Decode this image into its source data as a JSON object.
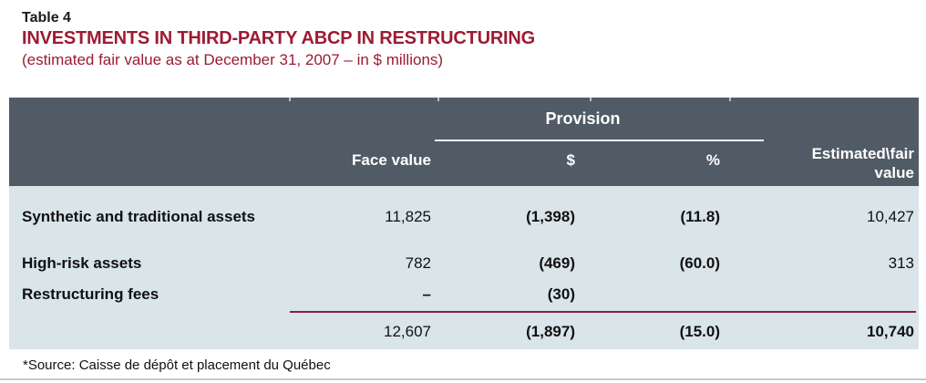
{
  "colors": {
    "accent-maroon": "#9c1b33",
    "header-bg": "#505b66",
    "body-bg": "#d9e5e8",
    "divider-maroon": "#8e1f3e",
    "page-rule": "#b6bcbf"
  },
  "header": {
    "table_label": "Table 4",
    "title": "INVESTMENTS IN THIRD-PARTY ABCP IN RESTRUCTURING",
    "subtitle": "(estimated fair value as at December 31, 2007 – in $ millions)"
  },
  "table": {
    "group_header": "Provision",
    "columns": {
      "face_value": "Face value",
      "provision_dollar": "$",
      "provision_percent": "%",
      "estimated_line1": "Estimated\\fair",
      "estimated_line2": "value"
    },
    "rows": [
      {
        "label": "Synthetic and traditional assets",
        "face_value": "11,825",
        "provision_dollar": "(1,398)",
        "provision_percent": "(11.8)",
        "estimated_fair_value": "10,427"
      },
      {
        "label": "High-risk assets",
        "face_value": "782",
        "provision_dollar": "(469)",
        "provision_percent": "(60.0)",
        "estimated_fair_value": "313"
      },
      {
        "label": "Restructuring fees",
        "face_value": "–",
        "provision_dollar": "(30)",
        "provision_percent": "",
        "estimated_fair_value": ""
      }
    ],
    "total": {
      "face_value": "12,607",
      "provision_dollar": "(1,897)",
      "provision_percent": "(15.0)",
      "estimated_fair_value": "10,740"
    }
  },
  "footer": {
    "source_note": "*Source: Caisse de dépôt et placement du Québec"
  }
}
